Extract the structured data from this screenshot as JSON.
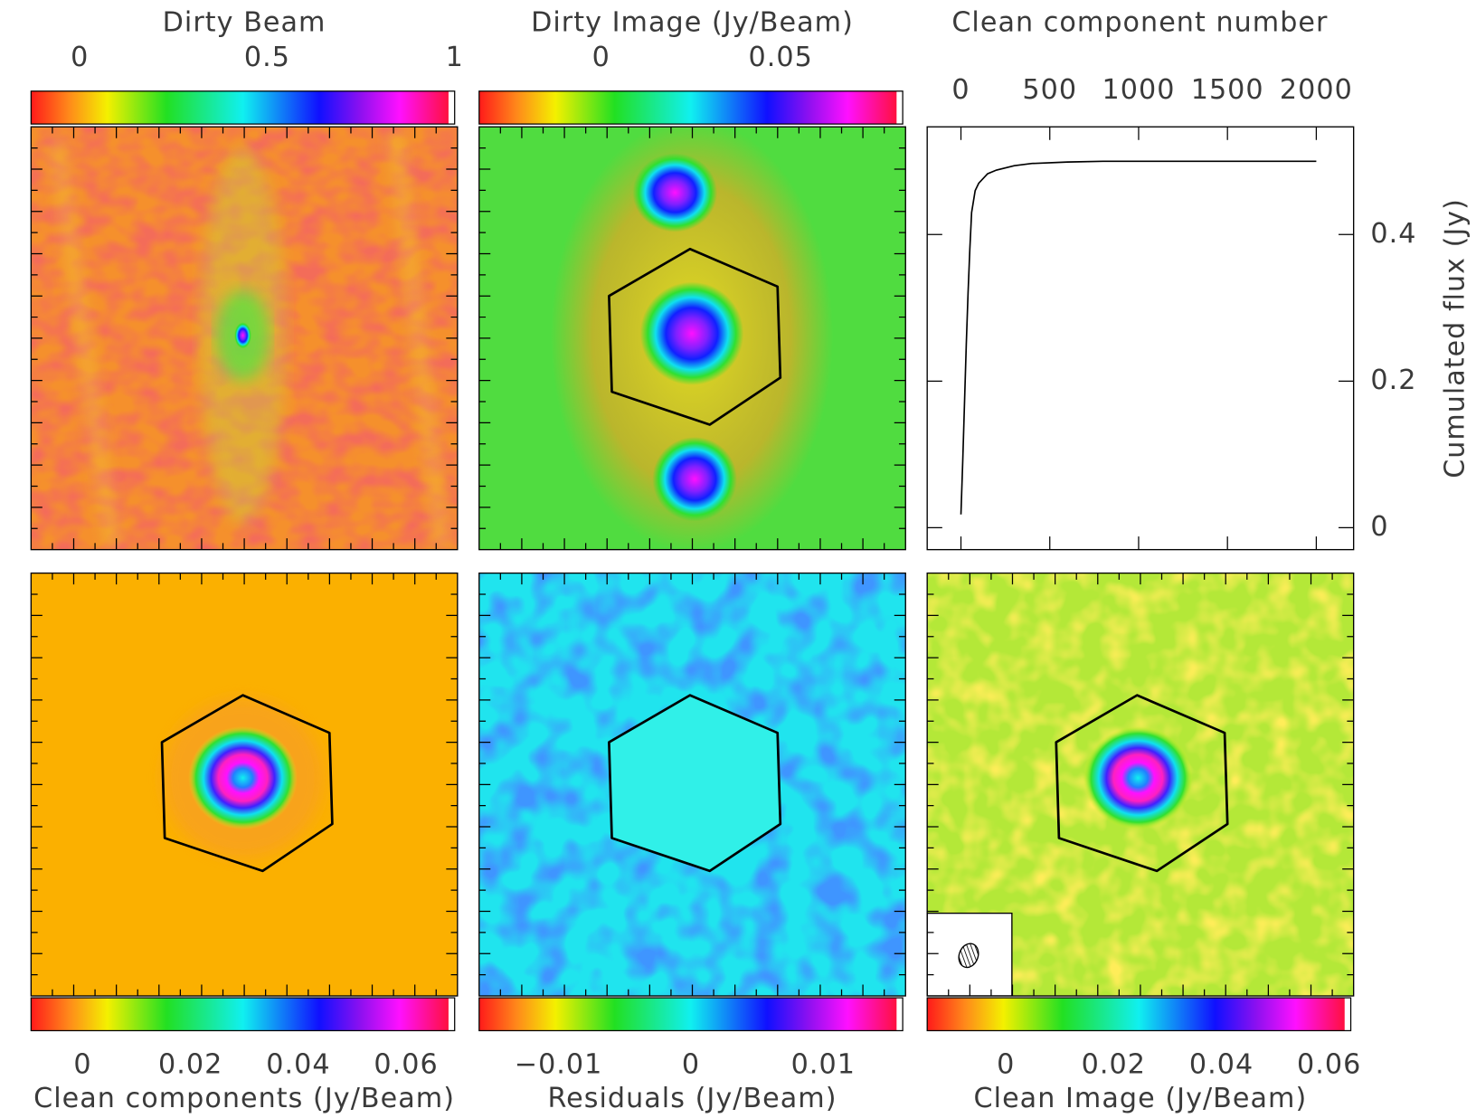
{
  "chart_data": [
    {
      "type": "image",
      "title": "Dirty Beam",
      "clim": [
        -0.13,
        1.0
      ],
      "cticks": [
        0,
        0.5,
        1
      ]
    },
    {
      "type": "image",
      "title": "Dirty Image (Jy/Beam)",
      "clim": [
        -0.034,
        0.084
      ],
      "cticks": [
        0,
        0.05
      ]
    },
    {
      "type": "line",
      "title": "Clean component number",
      "y_label": "Cumulated flux (Jy)",
      "color": "#000000",
      "x": [
        0,
        10,
        20,
        30,
        40,
        50,
        60,
        80,
        100,
        150,
        200,
        300,
        400,
        600,
        800,
        1000,
        1500,
        2000
      ],
      "values": [
        0.018,
        0.09,
        0.17,
        0.25,
        0.32,
        0.38,
        0.43,
        0.46,
        0.47,
        0.483,
        0.488,
        0.494,
        0.497,
        0.499,
        0.5,
        0.5,
        0.5,
        0.5
      ],
      "xlim": [
        -190,
        2210
      ],
      "xticks": [
        0,
        500,
        1000,
        1500,
        2000
      ],
      "ylim": [
        -0.03,
        0.547
      ],
      "yticks": [
        0,
        0.2,
        0.4
      ]
    },
    {
      "type": "image",
      "title": "Clean components (Jy/Beam)",
      "clim": [
        -0.0096,
        0.069
      ],
      "cticks": [
        0,
        0.02,
        0.04,
        0.06
      ]
    },
    {
      "type": "image",
      "title": "Residuals (Jy/Beam)",
      "clim": [
        -0.016,
        0.016
      ],
      "cticks": [
        {
          "value": -0.01,
          "label": "−0.01"
        },
        0,
        0.01
      ]
    },
    {
      "type": "image",
      "title": "Clean Image (Jy/Beam)",
      "clim": [
        -0.0146,
        0.064
      ],
      "cticks": [
        0,
        0.02,
        0.04,
        0.06
      ]
    }
  ]
}
